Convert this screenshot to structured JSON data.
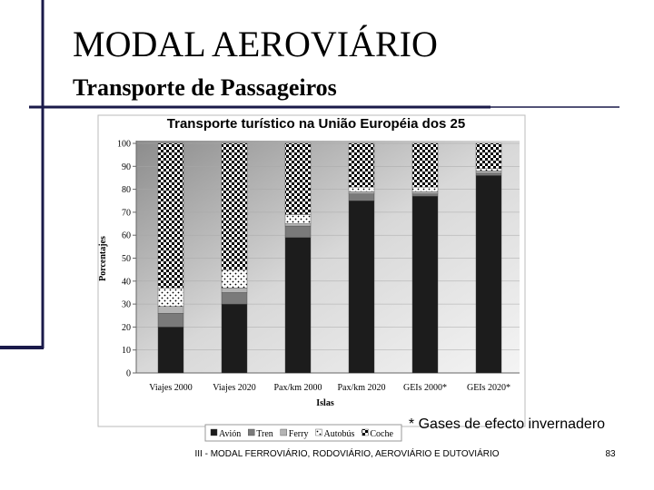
{
  "slide": {
    "title": "MODAL AEROVIÁRIO",
    "subtitle": "Transporte de Passageiros",
    "footnote": "* Gases de efecto invernadero",
    "footer": "III - MODAL FERROVIÁRIO, RODOVIÁRIO, AEROVIÁRIO E DUTOVIÁRIO",
    "page_number": "83"
  },
  "chart_data": {
    "type": "stacked_bar",
    "title": "Transporte turístico na União Européia dos 25",
    "x_label": "Islas",
    "y_label": "Porcentajes",
    "categories": [
      "Viajes 2000",
      "Viajes 2020",
      "Pax/km 2000",
      "Pax/km 2020",
      "GEIs 2000*",
      "GEIs 2020*"
    ],
    "series": [
      {
        "name": "Avión",
        "color": "#1c1c1c",
        "values": [
          20,
          30,
          59,
          75,
          77,
          86
        ]
      },
      {
        "name": "Tren",
        "color": "#7a7a7a",
        "values": [
          6,
          5,
          5,
          3,
          1,
          1
        ]
      },
      {
        "name": "Ferry",
        "color": "#b4b4b4",
        "values": [
          3,
          2,
          1,
          1,
          1,
          1
        ]
      },
      {
        "name": "Autobús",
        "color": "#000000",
        "pattern": "dots",
        "values": [
          8,
          8,
          4,
          2,
          2,
          1
        ]
      },
      {
        "name": "Coche",
        "color": "#000000",
        "pattern": "checker",
        "values": [
          63,
          55,
          31,
          19,
          19,
          11
        ]
      }
    ],
    "ylim": [
      0,
      100
    ],
    "yticks": [
      0,
      10,
      20,
      30,
      40,
      50,
      60,
      70,
      80,
      90,
      100
    ],
    "grid": true,
    "legend": "bottom"
  }
}
